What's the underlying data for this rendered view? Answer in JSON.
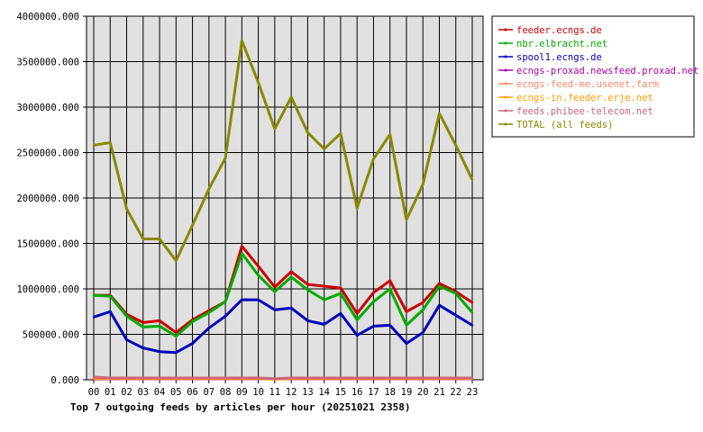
{
  "chart_data": {
    "type": "line",
    "title": "Top 7 outgoing feeds by articles per hour (20251021 2358)",
    "xlabel": "",
    "ylabel": "",
    "categories": [
      "00",
      "01",
      "02",
      "03",
      "04",
      "05",
      "06",
      "07",
      "08",
      "09",
      "10",
      "11",
      "12",
      "13",
      "14",
      "15",
      "16",
      "17",
      "18",
      "19",
      "20",
      "21",
      "22",
      "23"
    ],
    "y_ticks": [
      "0.000",
      "500000.000",
      "1000000.000",
      "1500000.000",
      "2000000.000",
      "2500000.000",
      "3000000.000",
      "3500000.000",
      "4000000.000"
    ],
    "ylim": [
      0,
      4000000
    ],
    "grid": true,
    "legend_position": "top-right",
    "series": [
      {
        "name": "feeder.ecngs.de",
        "color": "#cc0000",
        "values": [
          930000,
          930000,
          720000,
          630000,
          650000,
          520000,
          660000,
          760000,
          860000,
          1470000,
          1250000,
          1020000,
          1190000,
          1050000,
          1030000,
          1010000,
          730000,
          960000,
          1090000,
          750000,
          850000,
          1060000,
          970000,
          850000
        ]
      },
      {
        "name": "nbr.elbracht.net",
        "color": "#00aa00",
        "values": [
          930000,
          920000,
          700000,
          580000,
          590000,
          480000,
          640000,
          740000,
          860000,
          1390000,
          1150000,
          970000,
          1130000,
          990000,
          880000,
          950000,
          660000,
          860000,
          1000000,
          600000,
          770000,
          1030000,
          950000,
          740000
        ]
      },
      {
        "name": "spool1.ecngs.de",
        "color": "#0000bb",
        "values": [
          690000,
          750000,
          440000,
          350000,
          310000,
          300000,
          400000,
          570000,
          700000,
          880000,
          880000,
          770000,
          790000,
          650000,
          610000,
          730000,
          490000,
          590000,
          600000,
          400000,
          520000,
          820000,
          710000,
          600000
        ]
      },
      {
        "name": "ecngs-proxad.newsfeed.proxad.net",
        "color": "#aa00aa",
        "values": [
          10000,
          10000,
          10000,
          10000,
          10000,
          10000,
          10000,
          10000,
          10000,
          10000,
          10000,
          10000,
          10000,
          10000,
          10000,
          10000,
          10000,
          10000,
          10000,
          10000,
          10000,
          10000,
          10000,
          10000
        ]
      },
      {
        "name": "ecngs-feed-me.usenet.farm",
        "color": "#ff8866",
        "values": [
          20000,
          15000,
          15000,
          15000,
          15000,
          15000,
          15000,
          15000,
          15000,
          15000,
          15000,
          8000,
          15000,
          15000,
          15000,
          15000,
          15000,
          15000,
          15000,
          15000,
          15000,
          15000,
          15000,
          15000
        ]
      },
      {
        "name": "ecngs-in.feeder.erje.net",
        "color": "#ff9900",
        "values": [
          15000,
          12000,
          12000,
          12000,
          12000,
          12000,
          12000,
          12000,
          12000,
          12000,
          12000,
          8000,
          12000,
          12000,
          12000,
          12000,
          12000,
          12000,
          12000,
          12000,
          12000,
          12000,
          12000,
          12000
        ]
      },
      {
        "name": "feeds.phibee-telecom.net",
        "color": "#cc6677",
        "values": [
          30000,
          20000,
          20000,
          20000,
          20000,
          20000,
          20000,
          20000,
          20000,
          20000,
          20000,
          12000,
          20000,
          20000,
          20000,
          20000,
          20000,
          20000,
          20000,
          20000,
          20000,
          20000,
          20000,
          20000
        ]
      },
      {
        "name": "TOTAL (all feeds)",
        "color": "#888800",
        "values": [
          2580000,
          2610000,
          1880000,
          1550000,
          1550000,
          1310000,
          1700000,
          2100000,
          2440000,
          3730000,
          3270000,
          2760000,
          3110000,
          2720000,
          2540000,
          2710000,
          1890000,
          2430000,
          2700000,
          1760000,
          2150000,
          2930000,
          2580000,
          2200000
        ]
      }
    ]
  }
}
